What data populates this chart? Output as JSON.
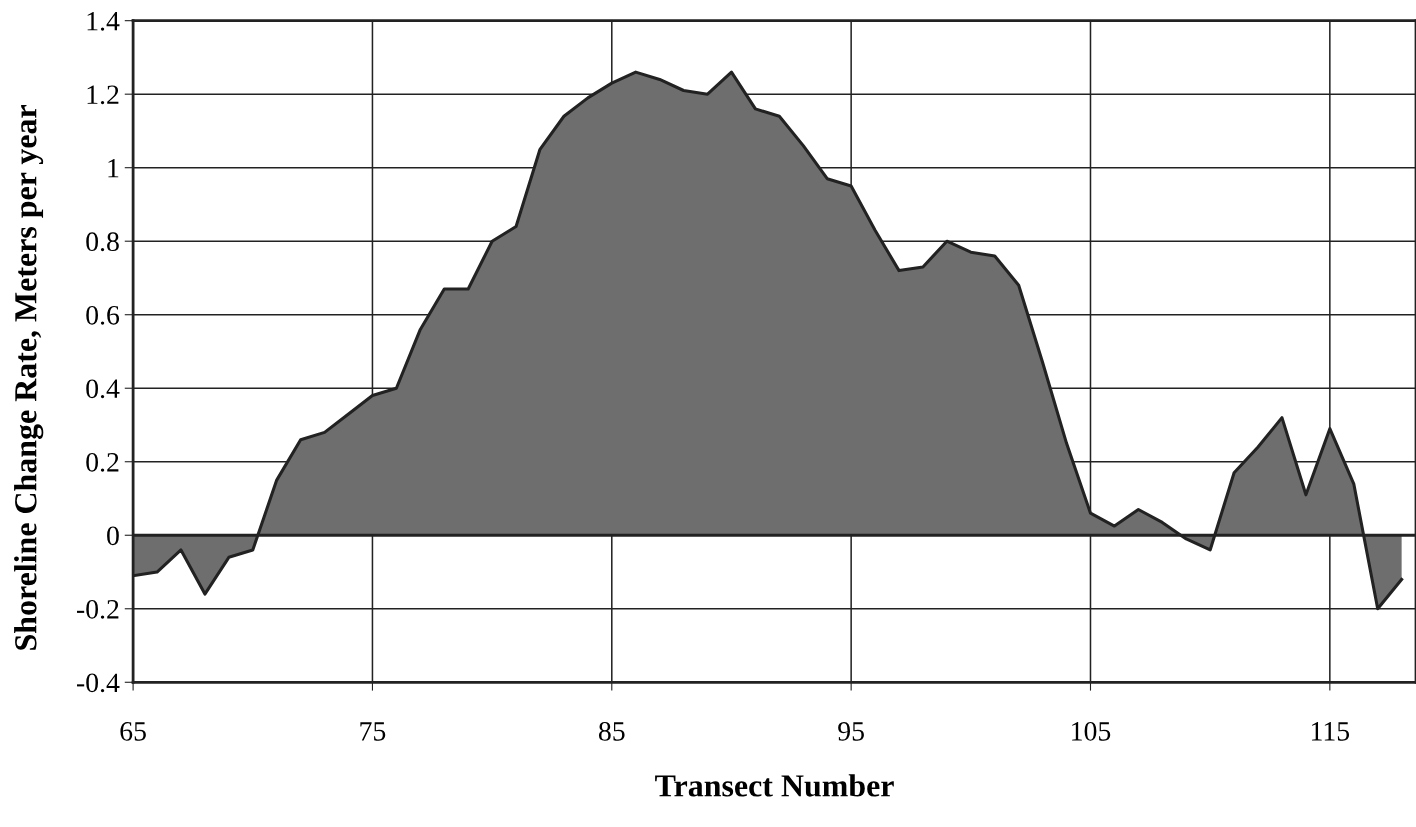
{
  "chart_data": {
    "type": "area",
    "xlabel": "Transect Number",
    "ylabel": "Shoreline Change Rate, Meters per year",
    "x": [
      65,
      66,
      67,
      68,
      69,
      70,
      71,
      72,
      73,
      74,
      75,
      76,
      77,
      78,
      79,
      80,
      81,
      82,
      83,
      84,
      85,
      86,
      87,
      88,
      89,
      90,
      91,
      92,
      93,
      94,
      95,
      96,
      97,
      98,
      99,
      100,
      101,
      102,
      103,
      104,
      105,
      106,
      107,
      108,
      109,
      110,
      111,
      112,
      113,
      114,
      115,
      116,
      117,
      118
    ],
    "series": [
      {
        "color": "#6e6e6e",
        "values": [
          -0.11,
          -0.1,
          -0.04,
          -0.16,
          -0.06,
          -0.04,
          0.15,
          0.26,
          0.28,
          0.33,
          0.38,
          0.4,
          0.56,
          0.67,
          0.67,
          0.8,
          0.84,
          1.05,
          1.14,
          1.19,
          1.23,
          1.26,
          1.24,
          1.21,
          1.2,
          1.26,
          1.16,
          1.14,
          1.06,
          0.97,
          0.95,
          0.83,
          0.72,
          0.73,
          0.8,
          0.77,
          0.76,
          0.68,
          0.47,
          0.25,
          0.06,
          0.025,
          0.07,
          0.035,
          -0.01,
          -0.04,
          0.17,
          0.24,
          0.32,
          0.11,
          0.29,
          0.14,
          -0.2,
          -0.12
        ]
      }
    ],
    "xlim": [
      65,
      118.6
    ],
    "xticks": [
      65,
      75,
      85,
      95,
      105,
      115
    ],
    "ylim": [
      -0.4,
      1.4
    ],
    "yticks": [
      -0.4,
      -0.2,
      0,
      0.2,
      0.4,
      0.6,
      0.8,
      1,
      1.2,
      1.4
    ],
    "grid": true
  }
}
